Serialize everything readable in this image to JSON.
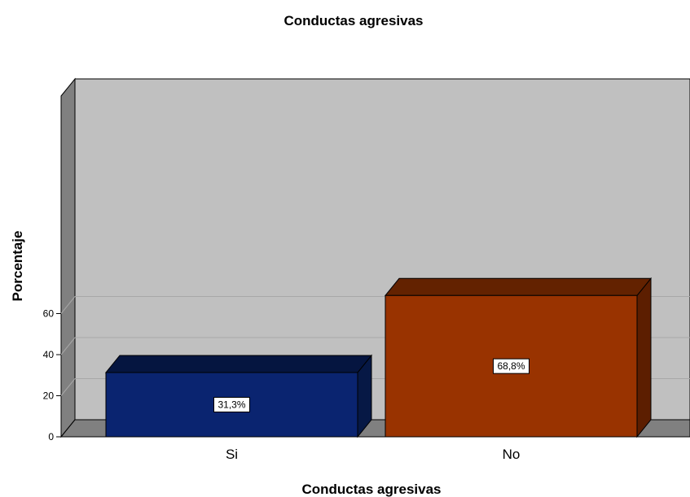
{
  "chart_data": {
    "type": "bar",
    "title": "Conductas agresivas",
    "xlabel": "Conductas agresivas",
    "ylabel": "Porcentaje",
    "categories": [
      "Si",
      "No"
    ],
    "values": [
      31.3,
      68.8
    ],
    "data_labels": [
      "31,3%",
      "68,8%"
    ],
    "yticks": [
      "0",
      "20",
      "40",
      "60"
    ],
    "ylim": [
      0,
      73
    ],
    "grid": true,
    "style": "3d",
    "colors": [
      "#0a2470",
      "#993300"
    ],
    "side_colors": [
      "#061845",
      "#5c1e00"
    ],
    "top_colors": [
      "#051540",
      "#632200"
    ],
    "wall_color": "#c0c0c0",
    "floor_color": "#808080",
    "side_wall_color": "#808080"
  }
}
